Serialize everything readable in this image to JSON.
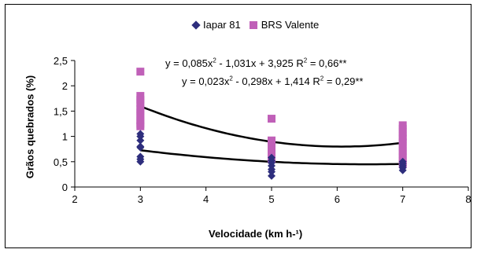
{
  "legend": {
    "series1": "Iapar 81",
    "series2": "BRS Valente"
  },
  "equations": {
    "upper": {
      "a": "y = 0,085x",
      "b": " - 1,031x + 3,925  R",
      "c": " = 0,66**"
    },
    "lower": {
      "a": "y = 0,023x",
      "b": " - 0,298x + 1,414  R",
      "c": " = 0,29**"
    }
  },
  "colors": {
    "iapar": "#2e2e7d",
    "brs": "#c060b8",
    "trend": "#000000"
  },
  "chart_data": {
    "type": "scatter",
    "xlabel": "Velocidade (km h-¹)",
    "ylabel": "Grãos quebrados (%)",
    "xlim": [
      2,
      8
    ],
    "ylim": [
      0,
      2.5
    ],
    "x_ticks": [
      "2",
      "3",
      "4",
      "5",
      "6",
      "7",
      "8"
    ],
    "y_ticks": [
      "0",
      "0,5",
      "1",
      "1,5",
      "2",
      "2,5"
    ],
    "series": [
      {
        "name": "Iapar 81",
        "marker": "diamond",
        "points": [
          [
            3,
            0.5
          ],
          [
            3,
            0.55
          ],
          [
            3,
            0.6
          ],
          [
            3,
            0.78
          ],
          [
            3,
            0.8
          ],
          [
            3,
            0.92
          ],
          [
            3,
            1.0
          ],
          [
            3,
            1.05
          ],
          [
            5,
            0.22
          ],
          [
            5,
            0.3
          ],
          [
            5,
            0.35
          ],
          [
            5,
            0.42
          ],
          [
            5,
            0.48
          ],
          [
            5,
            0.52
          ],
          [
            5,
            0.58
          ],
          [
            7,
            0.33
          ],
          [
            7,
            0.38
          ],
          [
            7,
            0.42
          ],
          [
            7,
            0.46
          ],
          [
            7,
            0.5
          ]
        ]
      },
      {
        "name": "BRS Valente",
        "marker": "square",
        "points": [
          [
            3,
            2.28
          ],
          [
            3,
            1.8
          ],
          [
            3,
            1.72
          ],
          [
            3,
            1.65
          ],
          [
            3,
            1.55
          ],
          [
            3,
            1.48
          ],
          [
            3,
            1.4
          ],
          [
            3,
            1.32
          ],
          [
            3,
            1.25
          ],
          [
            3,
            1.2
          ],
          [
            5,
            1.35
          ],
          [
            5,
            0.92
          ],
          [
            5,
            0.85
          ],
          [
            5,
            0.8
          ],
          [
            5,
            0.72
          ],
          [
            5,
            0.62
          ],
          [
            5,
            0.55
          ],
          [
            7,
            1.22
          ],
          [
            7,
            1.15
          ],
          [
            7,
            1.08
          ],
          [
            7,
            1.0
          ],
          [
            7,
            0.95
          ],
          [
            7,
            0.88
          ],
          [
            7,
            0.8
          ],
          [
            7,
            0.72
          ],
          [
            7,
            0.65
          ],
          [
            7,
            0.58
          ],
          [
            7,
            0.5
          ],
          [
            7,
            0.45
          ]
        ]
      }
    ],
    "trendlines": [
      {
        "coef": [
          0.085,
          -1.031,
          3.925
        ],
        "r2": 0.66,
        "xrange": [
          3,
          7
        ]
      },
      {
        "coef": [
          0.023,
          -0.298,
          1.414
        ],
        "r2": 0.29,
        "xrange": [
          3,
          7
        ]
      }
    ],
    "grid": false,
    "legend_position": "top"
  }
}
